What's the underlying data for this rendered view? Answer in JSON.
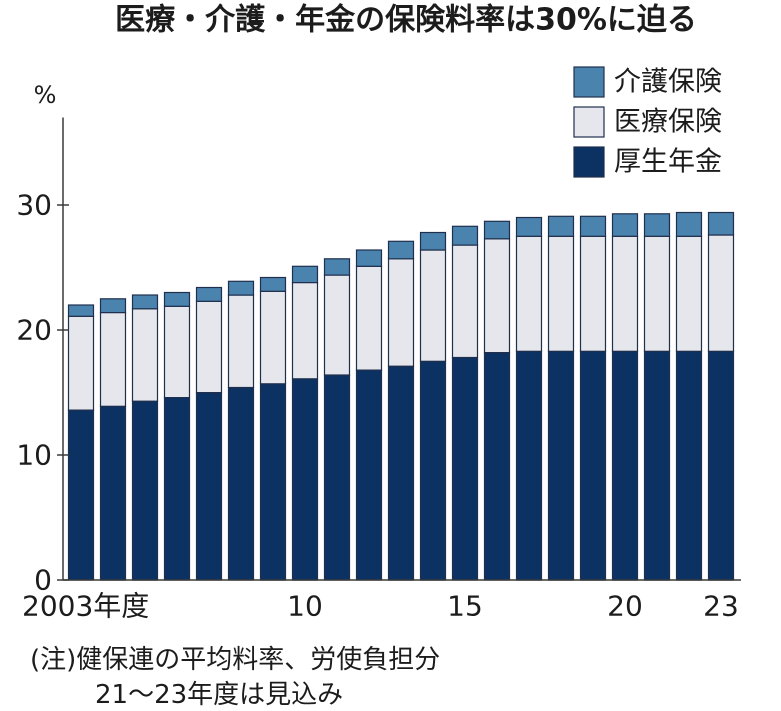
{
  "chart_data": {
    "type": "bar",
    "stacked": true,
    "title": "医療・介護・年金の保険料率は30%に迫る",
    "ylabel": "%",
    "ylim": [
      0,
      37
    ],
    "yticks": [
      0,
      10,
      20,
      30
    ],
    "grid": false,
    "legend_position": "top-right",
    "x": [
      2003,
      2004,
      2005,
      2006,
      2007,
      2008,
      2009,
      2010,
      2011,
      2012,
      2013,
      2014,
      2015,
      2016,
      2017,
      2018,
      2019,
      2020,
      2021,
      2022,
      2023
    ],
    "xticks": [
      {
        "value": 2003,
        "label": "2003年度"
      },
      {
        "value": 2010,
        "label": "10"
      },
      {
        "value": 2015,
        "label": "15"
      },
      {
        "value": 2020,
        "label": "20"
      },
      {
        "value": 2023,
        "label": "23"
      }
    ],
    "series": [
      {
        "name": "厚生年金",
        "color": "#0b3262",
        "values": [
          13.6,
          13.9,
          14.3,
          14.6,
          15.0,
          15.4,
          15.7,
          16.1,
          16.4,
          16.8,
          17.1,
          17.5,
          17.8,
          18.2,
          18.3,
          18.3,
          18.3,
          18.3,
          18.3,
          18.3,
          18.3
        ]
      },
      {
        "name": "医療保険",
        "color": "#e6e7ec",
        "values": [
          7.5,
          7.5,
          7.4,
          7.3,
          7.3,
          7.4,
          7.4,
          7.7,
          8.0,
          8.3,
          8.6,
          8.9,
          9.0,
          9.1,
          9.2,
          9.2,
          9.2,
          9.2,
          9.2,
          9.2,
          9.3
        ]
      },
      {
        "name": "介護保険",
        "color": "#4a83ae",
        "values": [
          0.9,
          1.1,
          1.1,
          1.1,
          1.1,
          1.1,
          1.1,
          1.3,
          1.3,
          1.3,
          1.4,
          1.4,
          1.5,
          1.4,
          1.5,
          1.6,
          1.6,
          1.8,
          1.8,
          1.9,
          1.8
        ]
      }
    ],
    "notes": [
      "(注)健保連の平均料率、労使負担分",
      "21～23年度は見込み"
    ]
  }
}
